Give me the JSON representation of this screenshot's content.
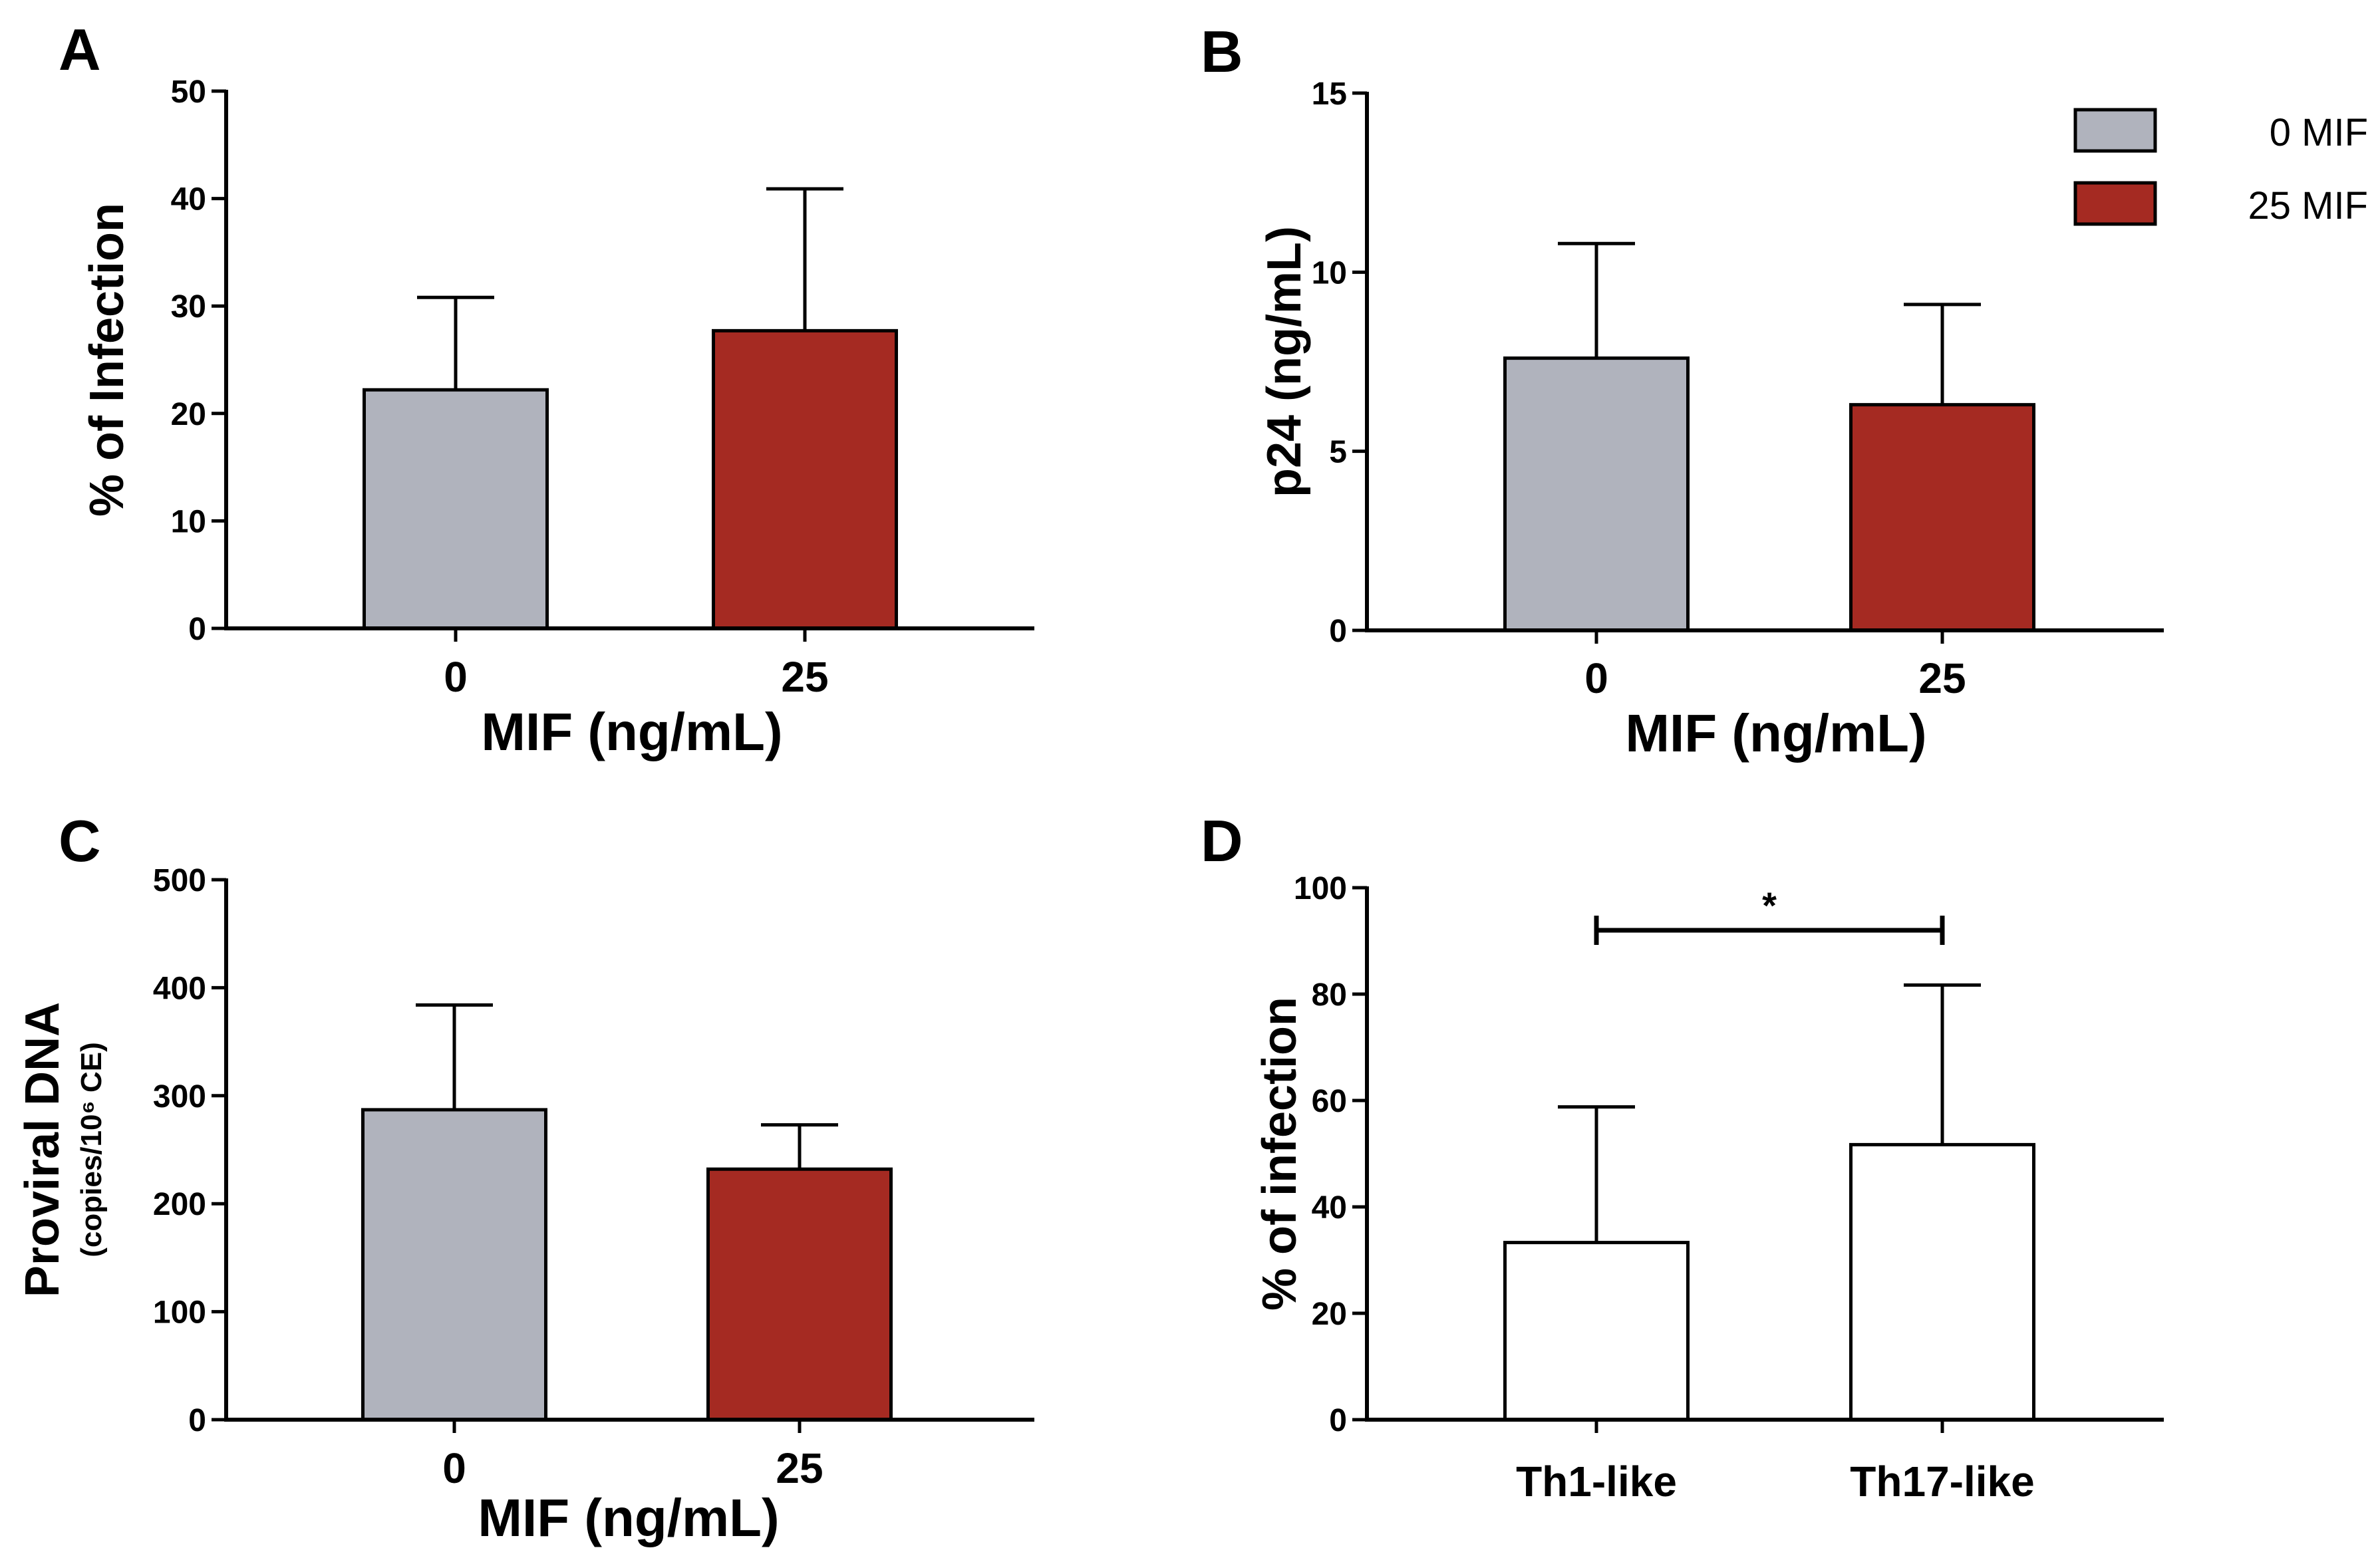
{
  "chart_data": [
    {
      "panel": "A",
      "type": "bar",
      "categories": [
        "0",
        "25"
      ],
      "values": [
        22.2,
        27.7
      ],
      "errors_upper": [
        30.8,
        40.9
      ],
      "colors": [
        "#b0b3bd",
        "#a52a22"
      ],
      "xlabel": "MIF (ng/mL)",
      "ylabel": "% of Infection",
      "ylabel_sub": "",
      "ylim": [
        0,
        50
      ],
      "yticks": [
        "0",
        "10",
        "20",
        "30",
        "40",
        "50"
      ],
      "significance": null
    },
    {
      "panel": "B",
      "type": "bar",
      "categories": [
        "0",
        "25"
      ],
      "values": [
        7.6,
        6.3
      ],
      "errors_upper": [
        10.8,
        9.1
      ],
      "colors": [
        "#b0b3bd",
        "#a52a22"
      ],
      "xlabel": "MIF (ng/mL)",
      "ylabel": "p24 (ng/mL)",
      "ylabel_sub": "",
      "ylim": [
        0,
        15
      ],
      "yticks": [
        "0",
        "5",
        "10",
        "15"
      ],
      "significance": null
    },
    {
      "panel": "C",
      "type": "bar",
      "categories": [
        "0",
        "25"
      ],
      "values": [
        287,
        232
      ],
      "errors_upper": [
        384,
        273
      ],
      "colors": [
        "#b0b3bd",
        "#a52a22"
      ],
      "xlabel": "MIF (ng/mL)",
      "ylabel": "Proviral DNA",
      "ylabel_sub": "(copies/10⁶ CE)",
      "ylim": [
        0,
        500
      ],
      "yticks": [
        "0",
        "100",
        "200",
        "300",
        "400",
        "500"
      ],
      "significance": null
    },
    {
      "panel": "D",
      "type": "bar",
      "categories": [
        "Th1-like",
        "Th17-like"
      ],
      "values": [
        33.3,
        51.7
      ],
      "errors_upper": [
        58.8,
        81.7
      ],
      "colors": [
        "#ffffff",
        "#ffffff"
      ],
      "xlabel": "",
      "ylabel": "% of infection",
      "ylabel_sub": "",
      "ylim": [
        0,
        100
      ],
      "yticks": [
        "0",
        "20",
        "40",
        "60",
        "80",
        "100"
      ],
      "significance": {
        "label": "*",
        "level": 92
      }
    }
  ],
  "legend": {
    "entries": [
      {
        "label": "0 MIF",
        "color": "#b0b3bd"
      },
      {
        "label": "25 MIF",
        "color": "#a52a22"
      }
    ],
    "position": "top-right"
  }
}
